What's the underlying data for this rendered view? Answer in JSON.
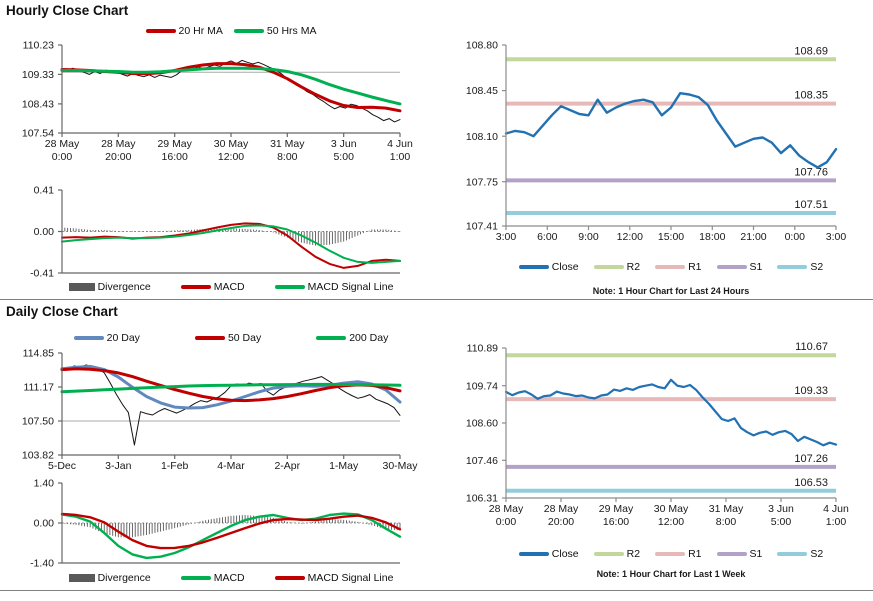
{
  "page": {
    "hourly_title": "Hourly Close Chart",
    "daily_title": "Daily Close Chart",
    "hourly_note": "Note: 1 Hour Chart for Last 24 Hours",
    "daily_note": "Note: 1 Hour Chart for Last 1 Week"
  },
  "colors": {
    "red": "#C00000",
    "green": "#00B050",
    "ma20_blue": "#6289BD",
    "close_blue": "#2271B3",
    "r2_green": "#C3D69B",
    "r1_pink": "#E6B9B8",
    "s1_purple": "#B3A2C7",
    "s2_cyan": "#92CDDC",
    "divergence_gray": "#595959"
  },
  "chart_data": [
    {
      "id": "hourly_price",
      "type": "line",
      "title": "Hourly Close Chart",
      "ylim": [
        107.54,
        110.23
      ],
      "yticks": [
        "110.23",
        "109.33",
        "108.43",
        "107.54"
      ],
      "xticks": [
        [
          "28 May",
          "0:00"
        ],
        [
          "28 May",
          "20:00"
        ],
        [
          "29 May",
          "16:00"
        ],
        [
          "30 May",
          "12:00"
        ],
        [
          "31 May",
          "8:00"
        ],
        [
          "3 Jun",
          "5:00"
        ],
        [
          "4 Jun",
          "1:00"
        ]
      ],
      "gridlines": [
        109.4
      ],
      "legend": [
        {
          "label": "20 Hr MA",
          "color": "#C00000",
          "type": "line"
        },
        {
          "label": "50 Hrs MA",
          "color": "#00B050",
          "type": "line"
        }
      ],
      "series": [
        {
          "name": "Close",
          "color": "#141414",
          "width": 1,
          "values": [
            109.5,
            109.46,
            109.52,
            109.45,
            109.4,
            109.33,
            109.42,
            109.36,
            109.46,
            109.44,
            109.4,
            109.34,
            109.28,
            109.36,
            109.3,
            109.26,
            109.32,
            109.24,
            109.31,
            109.27,
            109.24,
            109.32,
            109.45,
            109.52,
            109.48,
            109.56,
            109.5,
            109.57,
            109.62,
            109.58,
            109.68,
            109.74,
            109.66,
            109.76,
            109.7,
            109.65,
            109.7,
            109.63,
            109.55,
            109.48,
            109.38,
            109.25,
            109.12,
            109.0,
            108.92,
            108.8,
            108.72,
            108.6,
            108.5,
            108.38,
            108.28,
            108.35,
            108.3,
            108.42,
            108.38,
            108.3,
            108.22,
            108.1,
            108.02,
            107.92,
            107.98,
            107.88,
            107.95
          ]
        },
        {
          "name": "20 Hr MA",
          "color": "#C00000",
          "width": 3,
          "values": [
            109.48,
            109.47,
            109.45,
            109.42,
            109.4,
            109.36,
            109.35,
            109.38,
            109.45,
            109.55,
            109.62,
            109.66,
            109.66,
            109.63,
            109.55,
            109.4,
            109.2,
            108.95,
            108.72,
            108.52,
            108.38,
            108.32,
            108.33,
            108.3,
            108.22
          ]
        },
        {
          "name": "50 Hrs MA",
          "color": "#00B050",
          "width": 3,
          "values": [
            109.45,
            109.45,
            109.44,
            109.43,
            109.42,
            109.4,
            109.4,
            109.41,
            109.44,
            109.47,
            109.5,
            109.52,
            109.52,
            109.52,
            109.51,
            109.48,
            109.42,
            109.32,
            109.18,
            109.02,
            108.88,
            108.76,
            108.64,
            108.53,
            108.43
          ]
        }
      ]
    },
    {
      "id": "hourly_macd",
      "type": "line",
      "ylim": [
        -0.41,
        0.41
      ],
      "yticks": [
        "0.41",
        "0.00",
        "-0.41"
      ],
      "xticks": [],
      "zeroline": true,
      "legend": [
        {
          "label": "Divergence",
          "color": "#595959",
          "type": "bar"
        },
        {
          "label": "MACD",
          "color": "#C00000",
          "type": "line"
        },
        {
          "label": "MACD Signal Line",
          "color": "#00B050",
          "type": "line"
        }
      ],
      "bars": {
        "name": "Divergence",
        "color": "#595959",
        "upsample": 5,
        "values": [
          0.04,
          0.03,
          0.015,
          0.015,
          0.005,
          -0.005,
          0.005,
          0.005,
          0.01,
          0.015,
          0.025,
          0.03,
          0.03,
          0.025,
          0.015,
          -0.01,
          -0.06,
          -0.11,
          -0.14,
          -0.13,
          -0.1,
          -0.04,
          0.02,
          0.02,
          0.0
        ]
      },
      "series": [
        {
          "name": "MACD",
          "color": "#C00000",
          "width": 2,
          "values": [
            -0.06,
            -0.055,
            -0.06,
            -0.05,
            -0.055,
            -0.07,
            -0.06,
            -0.055,
            -0.04,
            -0.02,
            0.01,
            0.04,
            0.065,
            0.08,
            0.075,
            0.04,
            -0.04,
            -0.15,
            -0.25,
            -0.32,
            -0.36,
            -0.34,
            -0.29,
            -0.28,
            -0.29
          ]
        },
        {
          "name": "MACD Signal Line",
          "color": "#00B050",
          "width": 2,
          "values": [
            -0.1,
            -0.085,
            -0.075,
            -0.065,
            -0.06,
            -0.065,
            -0.065,
            -0.06,
            -0.05,
            -0.035,
            -0.015,
            0.01,
            0.035,
            0.055,
            0.06,
            0.05,
            0.02,
            -0.04,
            -0.11,
            -0.19,
            -0.26,
            -0.3,
            -0.31,
            -0.3,
            -0.29
          ]
        }
      ]
    },
    {
      "id": "hourly_levels",
      "type": "line",
      "note": "Note: 1 Hour Chart for Last 24 Hours",
      "ylim": [
        107.41,
        108.8
      ],
      "yticks": [
        "108.80",
        "108.45",
        "108.10",
        "107.75",
        "107.41"
      ],
      "xticks": [
        "3:00",
        "6:00",
        "9:00",
        "12:00",
        "15:00",
        "18:00",
        "21:00",
        "0:00",
        "3:00"
      ],
      "reflines": [
        {
          "name": "R2",
          "label": "108.69",
          "value": 108.69,
          "color": "#C3D69B"
        },
        {
          "name": "R1",
          "label": "108.35",
          "value": 108.35,
          "color": "#E6B9B8"
        },
        {
          "name": "S1",
          "label": "107.76",
          "value": 107.76,
          "color": "#B3A2C7"
        },
        {
          "name": "S2",
          "label": "107.51",
          "value": 107.51,
          "color": "#92CDDC"
        }
      ],
      "legend": [
        {
          "label": "Close",
          "color": "#2271B3",
          "type": "line"
        },
        {
          "label": "R2",
          "color": "#C3D69B",
          "type": "line"
        },
        {
          "label": "R1",
          "color": "#E6B9B8",
          "type": "line"
        },
        {
          "label": "S1",
          "color": "#B3A2C7",
          "type": "line"
        },
        {
          "label": "S2",
          "color": "#92CDDC",
          "type": "line"
        }
      ],
      "series": [
        {
          "name": "Close",
          "color": "#2271B3",
          "width": 2.4,
          "values": [
            108.12,
            108.14,
            108.13,
            108.1,
            108.18,
            108.26,
            108.33,
            108.3,
            108.27,
            108.26,
            108.38,
            108.28,
            108.32,
            108.35,
            108.37,
            108.38,
            108.36,
            108.26,
            108.32,
            108.43,
            108.42,
            108.4,
            108.34,
            108.22,
            108.12,
            108.02,
            108.05,
            108.08,
            108.09,
            108.05,
            107.97,
            108.03,
            107.95,
            107.9,
            107.86,
            107.9,
            108.0
          ]
        }
      ]
    },
    {
      "id": "daily_price",
      "type": "line",
      "title": "Daily Close Chart",
      "ylim": [
        103.82,
        114.85
      ],
      "yticks": [
        "114.85",
        "111.17",
        "107.50",
        "103.82"
      ],
      "xticks": [
        "5-Dec",
        "3-Jan",
        "1-Feb",
        "4-Mar",
        "2-Apr",
        "1-May",
        "30-May"
      ],
      "gridlines": [
        107.5
      ],
      "legend": [
        {
          "label": "20 Day",
          "color": "#6289BD",
          "type": "line"
        },
        {
          "label": "50 Day",
          "color": "#C00000",
          "type": "line"
        },
        {
          "label": "200 Day",
          "color": "#00B050",
          "type": "line"
        }
      ],
      "series": [
        {
          "name": "Close",
          "color": "#141414",
          "width": 1,
          "values": [
            113.25,
            113.05,
            113.45,
            113.3,
            113.55,
            113.4,
            113.15,
            112.7,
            111.6,
            110.4,
            109.3,
            108.4,
            104.9,
            108.5,
            108.3,
            108.15,
            108.55,
            108.85,
            108.6,
            108.35,
            108.65,
            109.0,
            109.4,
            109.7,
            109.55,
            109.85,
            110.1,
            110.6,
            111.3,
            111.5,
            111.35,
            111.6,
            111.45,
            111.55,
            110.7,
            110.3,
            110.85,
            111.15,
            111.4,
            111.6,
            111.8,
            111.95,
            112.1,
            112.3,
            111.9,
            111.5,
            111.0,
            110.6,
            110.25,
            109.95,
            110.1,
            110.35,
            109.85,
            109.6,
            109.35,
            108.95,
            108.1
          ]
        },
        {
          "name": "20 Day",
          "color": "#6289BD",
          "width": 3,
          "values": [
            113.15,
            113.3,
            113.4,
            113.05,
            112.25,
            111.15,
            110.15,
            109.45,
            109.0,
            108.9,
            108.95,
            109.25,
            109.65,
            110.15,
            110.65,
            111.05,
            111.25,
            111.3,
            111.25,
            111.35,
            111.6,
            111.75,
            111.5,
            110.85,
            109.55
          ]
        },
        {
          "name": "50 Day",
          "color": "#C00000",
          "width": 3,
          "values": [
            113.05,
            113.15,
            113.1,
            112.95,
            112.7,
            112.3,
            111.8,
            111.35,
            110.9,
            110.5,
            110.15,
            109.9,
            109.75,
            109.7,
            109.78,
            109.92,
            110.15,
            110.45,
            110.8,
            111.1,
            111.3,
            111.4,
            111.35,
            111.1,
            110.75
          ]
        },
        {
          "name": "200 Day",
          "color": "#00B050",
          "width": 3,
          "values": [
            110.65,
            110.73,
            110.8,
            110.88,
            110.95,
            111.02,
            111.09,
            111.16,
            111.22,
            111.28,
            111.32,
            111.35,
            111.37,
            111.39,
            111.41,
            111.42,
            111.43,
            111.44,
            111.45,
            111.45,
            111.44,
            111.43,
            111.41,
            111.39,
            111.36
          ]
        }
      ]
    },
    {
      "id": "daily_macd",
      "type": "line",
      "ylim": [
        -1.4,
        1.4
      ],
      "yticks": [
        "1.40",
        "0.00",
        "-1.40"
      ],
      "xticks": [],
      "zeroline": true,
      "legend": [
        {
          "label": "Divergence",
          "color": "#595959",
          "type": "bar"
        },
        {
          "label": "MACD",
          "color": "#00B050",
          "type": "line"
        },
        {
          "label": "MACD Signal Line",
          "color": "#C00000",
          "type": "line"
        }
      ],
      "bars": {
        "name": "Divergence",
        "color": "#595959",
        "upsample": 5,
        "values": [
          -0.02,
          -0.06,
          -0.15,
          -0.37,
          -0.5,
          -0.5,
          -0.42,
          -0.3,
          -0.18,
          -0.05,
          0.08,
          0.17,
          0.25,
          0.28,
          0.24,
          0.18,
          0.04,
          -0.02,
          0.05,
          0.13,
          0.11,
          0.04,
          -0.08,
          -0.22,
          -0.26
        ]
      },
      "series": [
        {
          "name": "MACD",
          "color": "#00B050",
          "width": 2.4,
          "values": [
            0.3,
            0.22,
            0.05,
            -0.35,
            -0.8,
            -1.1,
            -1.22,
            -1.18,
            -1.05,
            -0.85,
            -0.6,
            -0.35,
            -0.1,
            0.1,
            0.22,
            0.28,
            0.18,
            0.1,
            0.15,
            0.28,
            0.33,
            0.3,
            0.1,
            -0.2,
            -0.48
          ]
        },
        {
          "name": "MACD Signal Line",
          "color": "#C00000",
          "width": 2.4,
          "values": [
            0.32,
            0.28,
            0.2,
            0.02,
            -0.3,
            -0.6,
            -0.8,
            -0.88,
            -0.87,
            -0.8,
            -0.68,
            -0.52,
            -0.35,
            -0.18,
            -0.02,
            0.1,
            0.14,
            0.12,
            0.1,
            0.15,
            0.22,
            0.26,
            0.18,
            0.02,
            -0.22
          ]
        }
      ]
    },
    {
      "id": "daily_levels",
      "type": "line",
      "note": "Note: 1 Hour Chart for Last 1 Week",
      "ylim": [
        106.31,
        110.89
      ],
      "yticks": [
        "110.89",
        "109.74",
        "108.60",
        "107.46",
        "106.31"
      ],
      "xticks": [
        [
          "28 May",
          "0:00"
        ],
        [
          "28 May",
          "20:00"
        ],
        [
          "29 May",
          "16:00"
        ],
        [
          "30 May",
          "12:00"
        ],
        [
          "31 May",
          "8:00"
        ],
        [
          "3 Jun",
          "5:00"
        ],
        [
          "4 Jun",
          "1:00"
        ]
      ],
      "reflines": [
        {
          "name": "R2",
          "label": "110.67",
          "value": 110.67,
          "color": "#C3D69B"
        },
        {
          "name": "R1",
          "label": "109.33",
          "value": 109.33,
          "color": "#E6B9B8"
        },
        {
          "name": "S1",
          "label": "107.26",
          "value": 107.26,
          "color": "#B3A2C7"
        },
        {
          "name": "S2",
          "label": "106.53",
          "value": 106.53,
          "color": "#92CDDC"
        }
      ],
      "legend": [
        {
          "label": "Close",
          "color": "#2271B3",
          "type": "line"
        },
        {
          "label": "R2",
          "color": "#C3D69B",
          "type": "line"
        },
        {
          "label": "R1",
          "color": "#E6B9B8",
          "type": "line"
        },
        {
          "label": "S1",
          "color": "#B3A2C7",
          "type": "line"
        },
        {
          "label": "S2",
          "color": "#92CDDC",
          "type": "line"
        }
      ],
      "series": [
        {
          "name": "Close",
          "color": "#2271B3",
          "width": 2.2,
          "values": [
            109.55,
            109.45,
            109.53,
            109.57,
            109.47,
            109.34,
            109.42,
            109.44,
            109.56,
            109.5,
            109.47,
            109.42,
            109.44,
            109.38,
            109.35,
            109.44,
            109.47,
            109.62,
            109.58,
            109.66,
            109.61,
            109.7,
            109.74,
            109.78,
            109.7,
            109.66,
            109.92,
            109.74,
            109.7,
            109.76,
            109.6,
            109.38,
            109.18,
            108.95,
            108.72,
            108.66,
            108.74,
            108.45,
            108.32,
            108.22,
            108.3,
            108.34,
            108.24,
            108.32,
            108.36,
            108.26,
            108.05,
            108.18,
            108.1,
            108.02,
            107.92,
            108.0,
            107.94
          ]
        }
      ]
    }
  ]
}
